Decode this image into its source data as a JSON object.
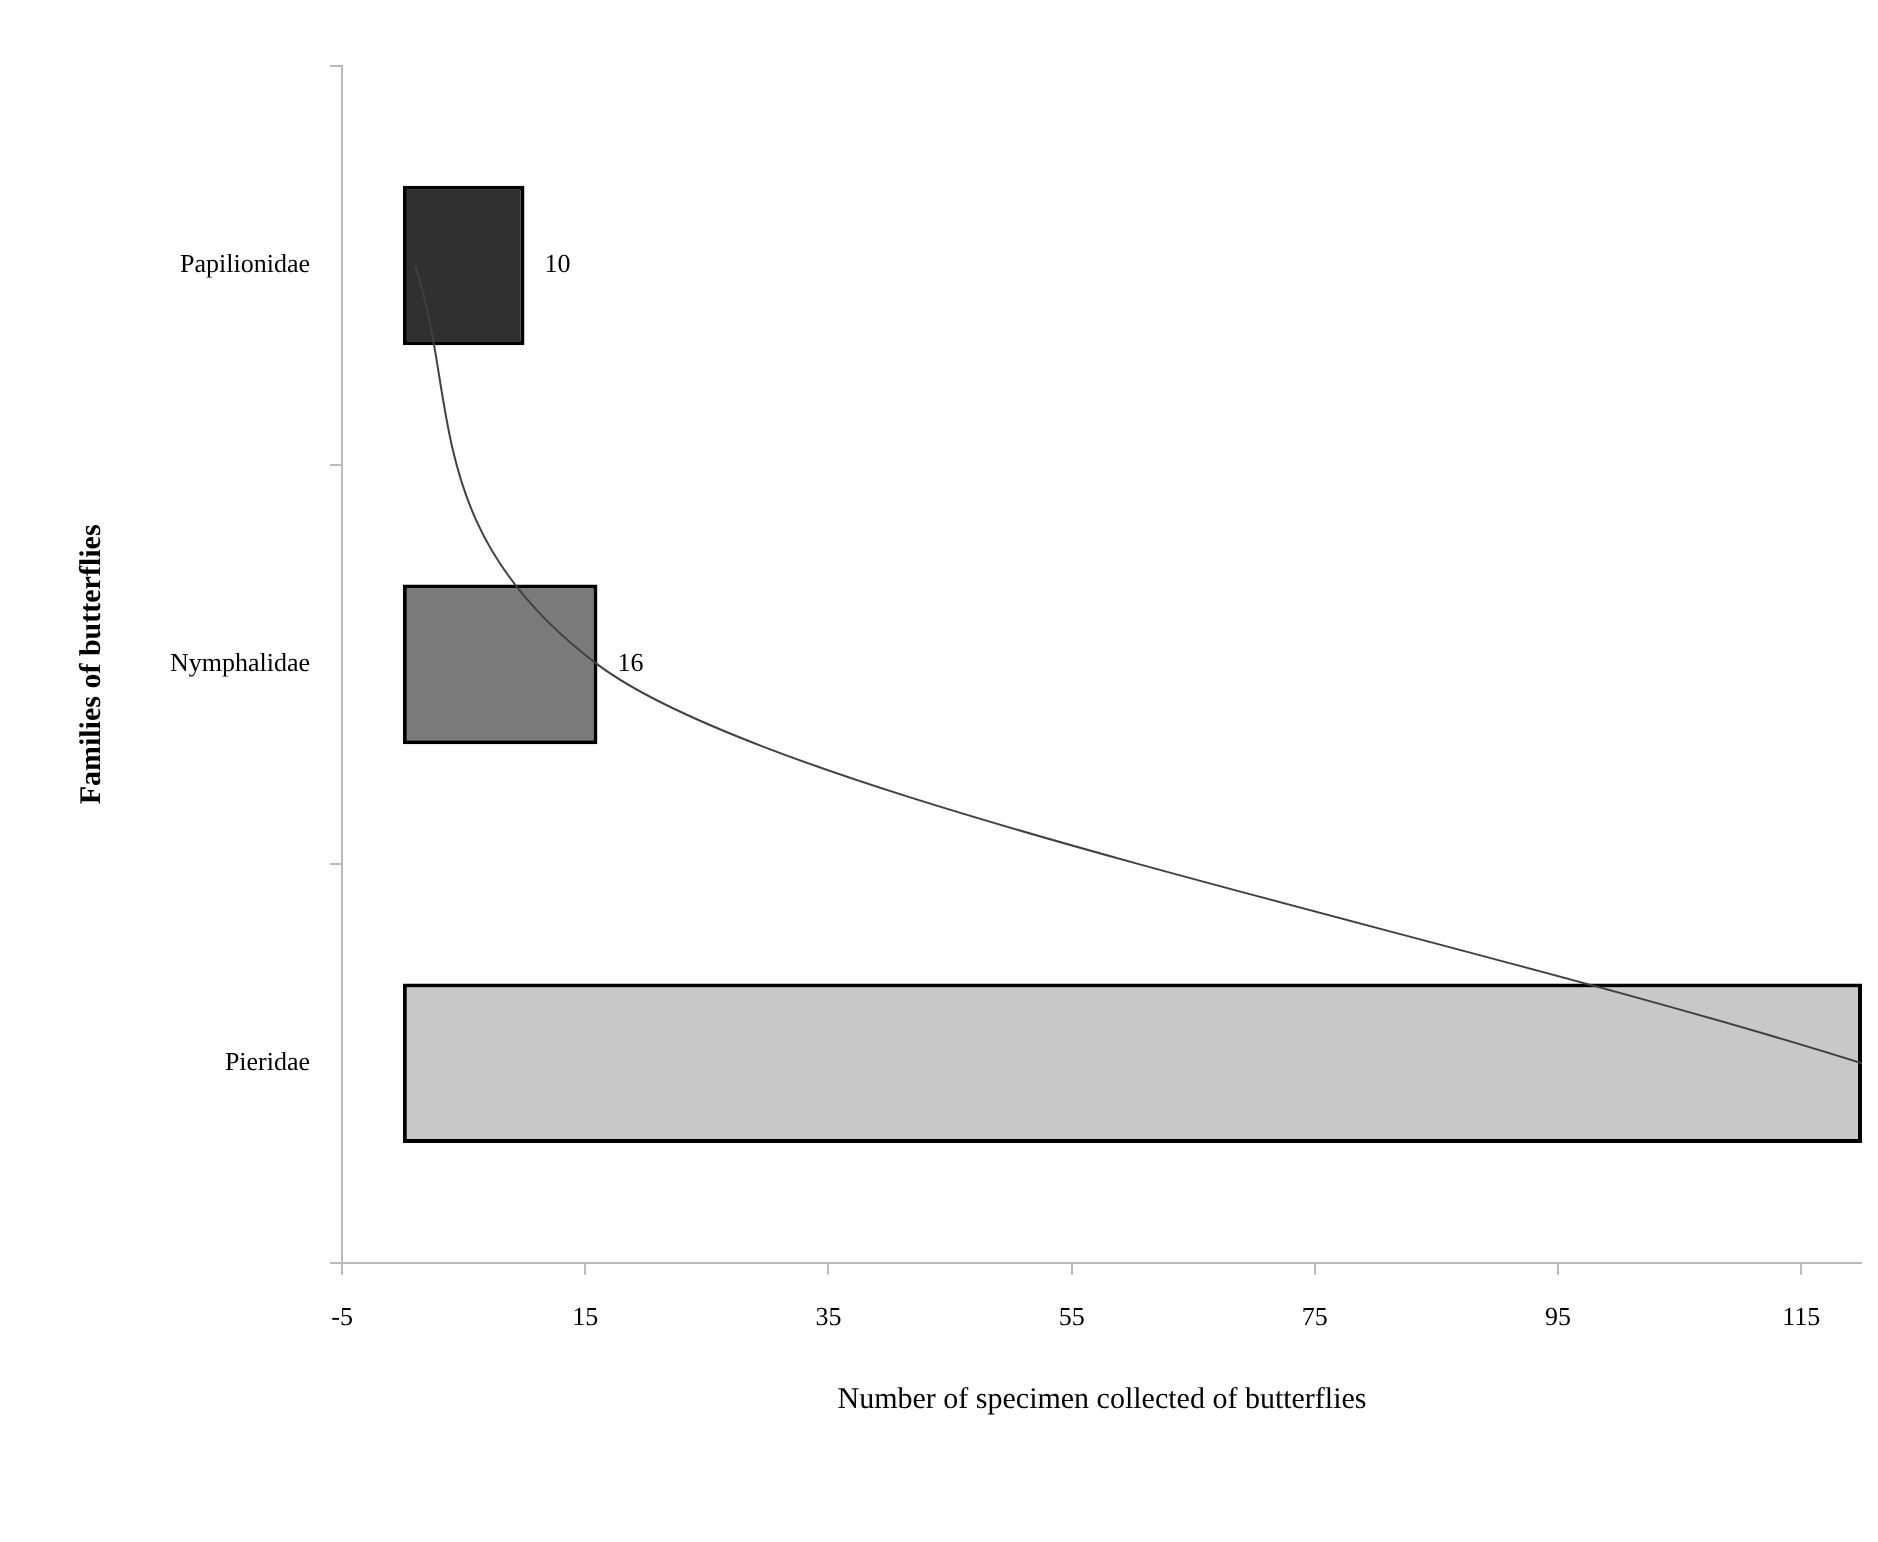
{
  "chart_data": {
    "type": "bar",
    "orientation": "horizontal",
    "xlabel": "Number of specimen collected of butterflies",
    "ylabel": "Families of butterflies",
    "categories": [
      "Papilionidae",
      "Nymphalidae",
      "Pieridae"
    ],
    "series": [
      {
        "values": [
          10,
          16,
          120
        ],
        "colors": [
          "#303030",
          "#7a7a7a",
          "#c8c8c8"
        ],
        "value_labels": [
          "10",
          "16",
          null
        ]
      },
      {
        "type": "line",
        "color": "#404040",
        "values": [
          1,
          16,
          120
        ],
        "marker": "none"
      }
    ],
    "xlim": [
      -5,
      120
    ],
    "xticks": [
      -5,
      15,
      35,
      55,
      75,
      95,
      115
    ],
    "grid": false,
    "legend": false
  }
}
